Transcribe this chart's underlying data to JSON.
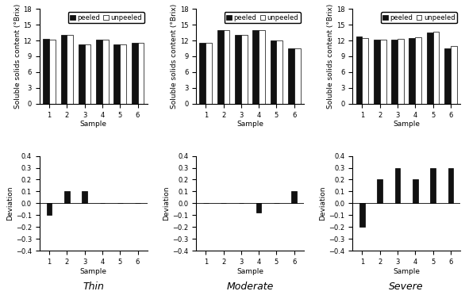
{
  "thin_peeled": [
    12.3,
    13.1,
    11.3,
    12.1,
    11.2,
    11.5
  ],
  "thin_unpeeled": [
    12.2,
    13.0,
    11.3,
    12.1,
    11.2,
    11.5
  ],
  "thin_deviation": [
    -0.1,
    0.1,
    0.1,
    0.0,
    0.0,
    0.0
  ],
  "mod_peeled": [
    11.5,
    14.0,
    13.0,
    14.0,
    12.0,
    10.5
  ],
  "mod_unpeeled": [
    11.5,
    14.0,
    13.0,
    14.0,
    12.0,
    10.5
  ],
  "mod_deviation": [
    0.0,
    0.0,
    0.0,
    -0.08,
    0.0,
    0.1
  ],
  "sev_peeled": [
    12.7,
    12.2,
    12.1,
    12.5,
    13.5,
    10.5
  ],
  "sev_unpeeled": [
    12.5,
    12.2,
    12.3,
    12.6,
    13.7,
    11.0
  ],
  "sev_deviation": [
    -0.2,
    0.2,
    0.3,
    0.2,
    0.3,
    0.3
  ],
  "samples": [
    1,
    2,
    3,
    4,
    5,
    6
  ],
  "ylim_bar": [
    0,
    18
  ],
  "yticks_bar": [
    0,
    3,
    6,
    9,
    12,
    15,
    18
  ],
  "ylim_dev": [
    -0.4,
    0.4
  ],
  "yticks_dev": [
    -0.4,
    -0.3,
    -0.2,
    -0.1,
    0.0,
    0.1,
    0.2,
    0.3,
    0.4
  ],
  "bar_width": 0.35,
  "col_labels": [
    "Thin",
    "Moderate",
    "Severe"
  ],
  "xlabel": "Sample",
  "ylabel_bar": "Soluble solids content (°Brix)",
  "ylabel_dev": "Deviation",
  "legend_labels": [
    "peeled",
    "unpeeled"
  ],
  "bar_color_peeled": "#111111",
  "bar_color_unpeeled": "#ffffff",
  "bar_edgecolor": "#000000",
  "fontsize_tick": 6,
  "fontsize_label": 6.5,
  "fontsize_legend": 6,
  "fontsize_col_label": 9
}
